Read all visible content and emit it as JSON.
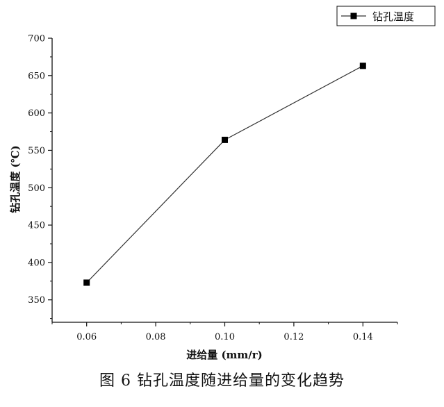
{
  "caption": "图 6 钻孔温度随进给量的变化趋势",
  "chart_data": {
    "type": "line",
    "xlabel": "进给量 (mm/r)",
    "ylabel": "钻孔温度 (℃)",
    "xlim": [
      0.05,
      0.15
    ],
    "ylim": [
      320,
      700
    ],
    "x_ticks": [
      "0.06",
      "0.08",
      "0.10",
      "0.12",
      "0.14"
    ],
    "y_ticks": [
      "350",
      "400",
      "450",
      "500",
      "550",
      "600",
      "650",
      "700"
    ],
    "legend_position": "top-right",
    "grid": false,
    "series": [
      {
        "name": "钻孔温度",
        "color": "#000000",
        "marker": "square",
        "x": [
          0.06,
          0.1,
          0.14
        ],
        "y": [
          373,
          564,
          663
        ]
      }
    ]
  }
}
